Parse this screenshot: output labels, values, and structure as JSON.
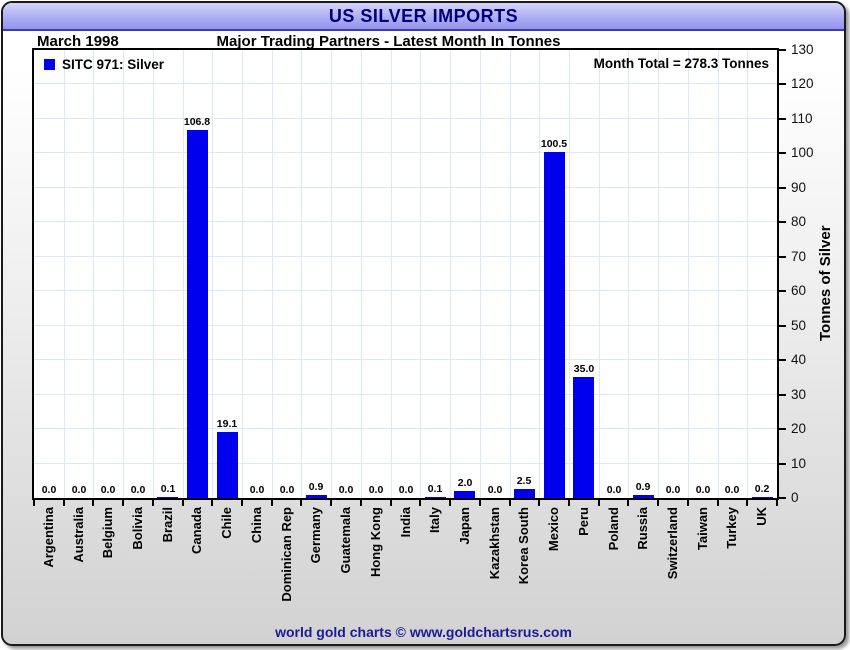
{
  "banner": {
    "title": "US SILVER IMPORTS"
  },
  "header": {
    "date_label": "March 1998",
    "subtitle": "Major Trading Partners - Latest Month In Tonnes"
  },
  "legend": {
    "label": "SITC 971: Silver"
  },
  "annotations": {
    "month_total": "Month Total = 278.3 Tonnes"
  },
  "footer": {
    "credit": "world gold charts © www.goldchartsrus.com"
  },
  "colors": {
    "bar": "#0000ee",
    "grid": "#dce8f4",
    "banner_text": "#00007d",
    "banner_top": "#d4d4fb",
    "banner_bottom": "#9494ec",
    "footer_text": "#1b1b99"
  },
  "chart_data": {
    "type": "bar",
    "title": "US SILVER IMPORTS",
    "subtitle": "Major Trading Partners - Latest Month In Tonnes",
    "xlabel": "",
    "ylabel": "Tonnes of Silver",
    "ylim": [
      0,
      130
    ],
    "ytick_step": 10,
    "yticks": [
      0,
      10,
      20,
      30,
      40,
      50,
      60,
      70,
      80,
      90,
      100,
      110,
      120,
      130
    ],
    "grid": true,
    "legend_position": "top-left",
    "legend": [
      "SITC 971: Silver"
    ],
    "categories": [
      "Argentina",
      "Australia",
      "Belgium",
      "Bolivia",
      "Brazil",
      "Canada",
      "Chile",
      "China",
      "Dominican Rep",
      "Germany",
      "Guatemala",
      "Hong Kong",
      "India",
      "Italy",
      "Japan",
      "Kazakhstan",
      "Korea South",
      "Mexico",
      "Peru",
      "Poland",
      "Russia",
      "Switzerland",
      "Taiwan",
      "Turkey",
      "UK"
    ],
    "values": [
      0.0,
      0.0,
      0.0,
      0.0,
      0.1,
      106.8,
      19.1,
      0.0,
      0.0,
      0.9,
      0.0,
      0.0,
      0.0,
      0.1,
      2.0,
      0.0,
      2.5,
      100.5,
      35.0,
      0.0,
      0.9,
      0.0,
      0.0,
      0.0,
      0.2
    ],
    "value_labels": [
      "0.0",
      "0.0",
      "0.0",
      "0.0",
      "0.1",
      "106.8",
      "19.1",
      "0.0",
      "0.0",
      "0.9",
      "0.0",
      "0.0",
      "0.0",
      "0.1",
      "2.0",
      "0.0",
      "2.5",
      "100.5",
      "35.0",
      "0.0",
      "0.9",
      "0.0",
      "0.0",
      "0.0",
      "0.2"
    ],
    "month_total_tonnes": 278.3
  }
}
